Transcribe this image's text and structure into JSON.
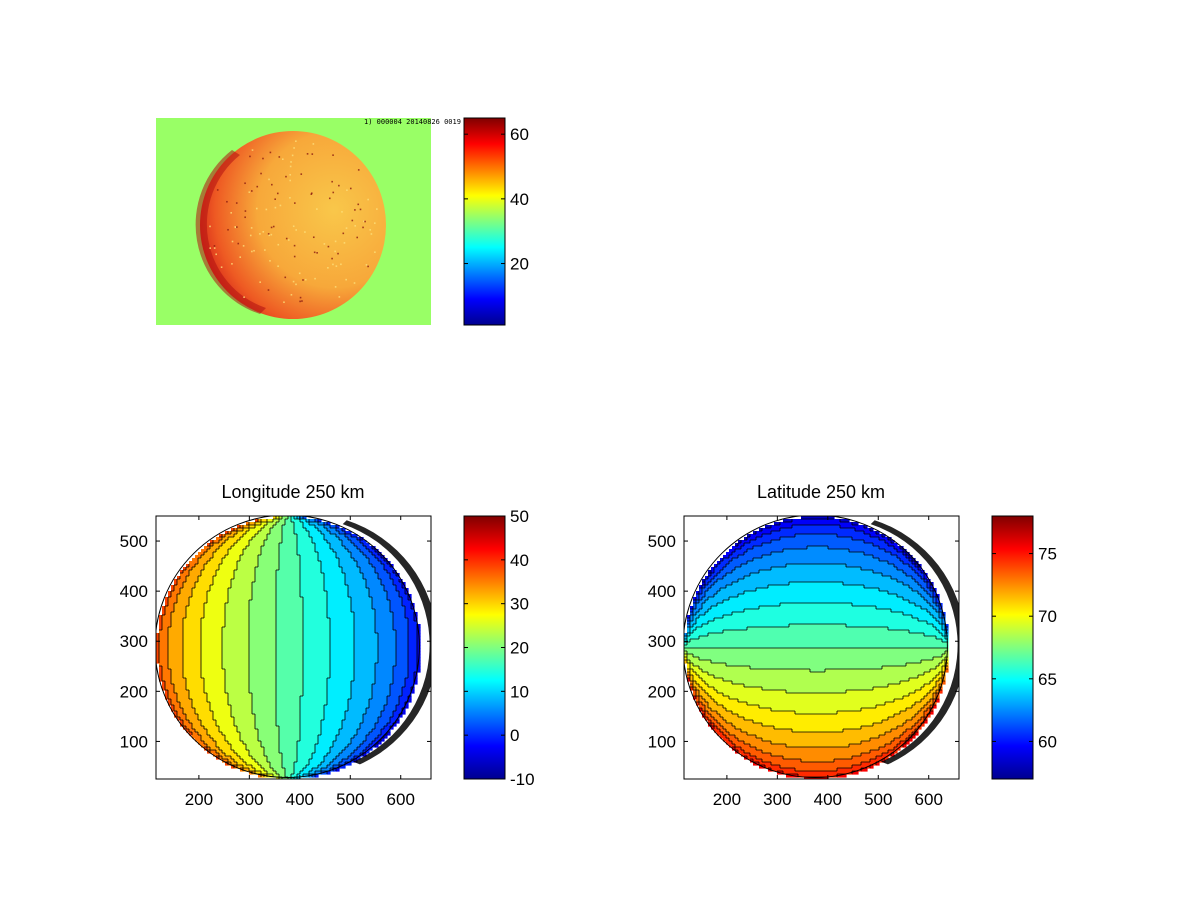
{
  "chart_data": [
    {
      "type": "heatmap",
      "panel": "image",
      "title": "",
      "header_text": "1) 000004 20140826 0019",
      "colorbar": {
        "range": [
          1,
          65
        ],
        "ticks": [
          20,
          40,
          60
        ],
        "colormap": "jet"
      },
      "disk_value": 49,
      "limb_value": 58,
      "background_value": 32
    },
    {
      "type": "heatmap",
      "panel": "longitude",
      "title": "Longitude 250 km",
      "xlim": [
        115,
        660
      ],
      "ylim": [
        25,
        550
      ],
      "xticks": [
        200,
        300,
        400,
        500,
        600
      ],
      "yticks": [
        100,
        200,
        300,
        400,
        500
      ],
      "colorbar": {
        "range": [
          -10,
          50
        ],
        "ticks": [
          -10,
          0,
          10,
          20,
          30,
          40,
          50
        ],
        "colormap": "jet"
      },
      "contour_levels": [
        -5,
        -2,
        1,
        4,
        7,
        10,
        13,
        16,
        19,
        22,
        25,
        28,
        31,
        34,
        37,
        40
      ],
      "disk_center": [
        375,
        290
      ],
      "disk_radius": 262,
      "value_range": [
        -5,
        40
      ]
    },
    {
      "type": "heatmap",
      "panel": "latitude",
      "title": "Latitude 250 km",
      "xlim": [
        115,
        660
      ],
      "ylim": [
        25,
        550
      ],
      "xticks": [
        200,
        300,
        400,
        500,
        600
      ],
      "yticks": [
        100,
        200,
        300,
        400,
        500
      ],
      "colorbar": {
        "range": [
          57,
          78
        ],
        "ticks": [
          60,
          65,
          70,
          75
        ],
        "colormap": "jet"
      },
      "contour_levels": [
        58,
        59,
        60,
        61,
        62,
        63,
        64,
        65,
        66,
        67,
        68,
        69,
        70,
        71,
        72,
        73,
        74,
        75,
        76
      ],
      "disk_center": [
        375,
        290
      ],
      "disk_radius": 262,
      "value_range": [
        58,
        76
      ]
    }
  ]
}
